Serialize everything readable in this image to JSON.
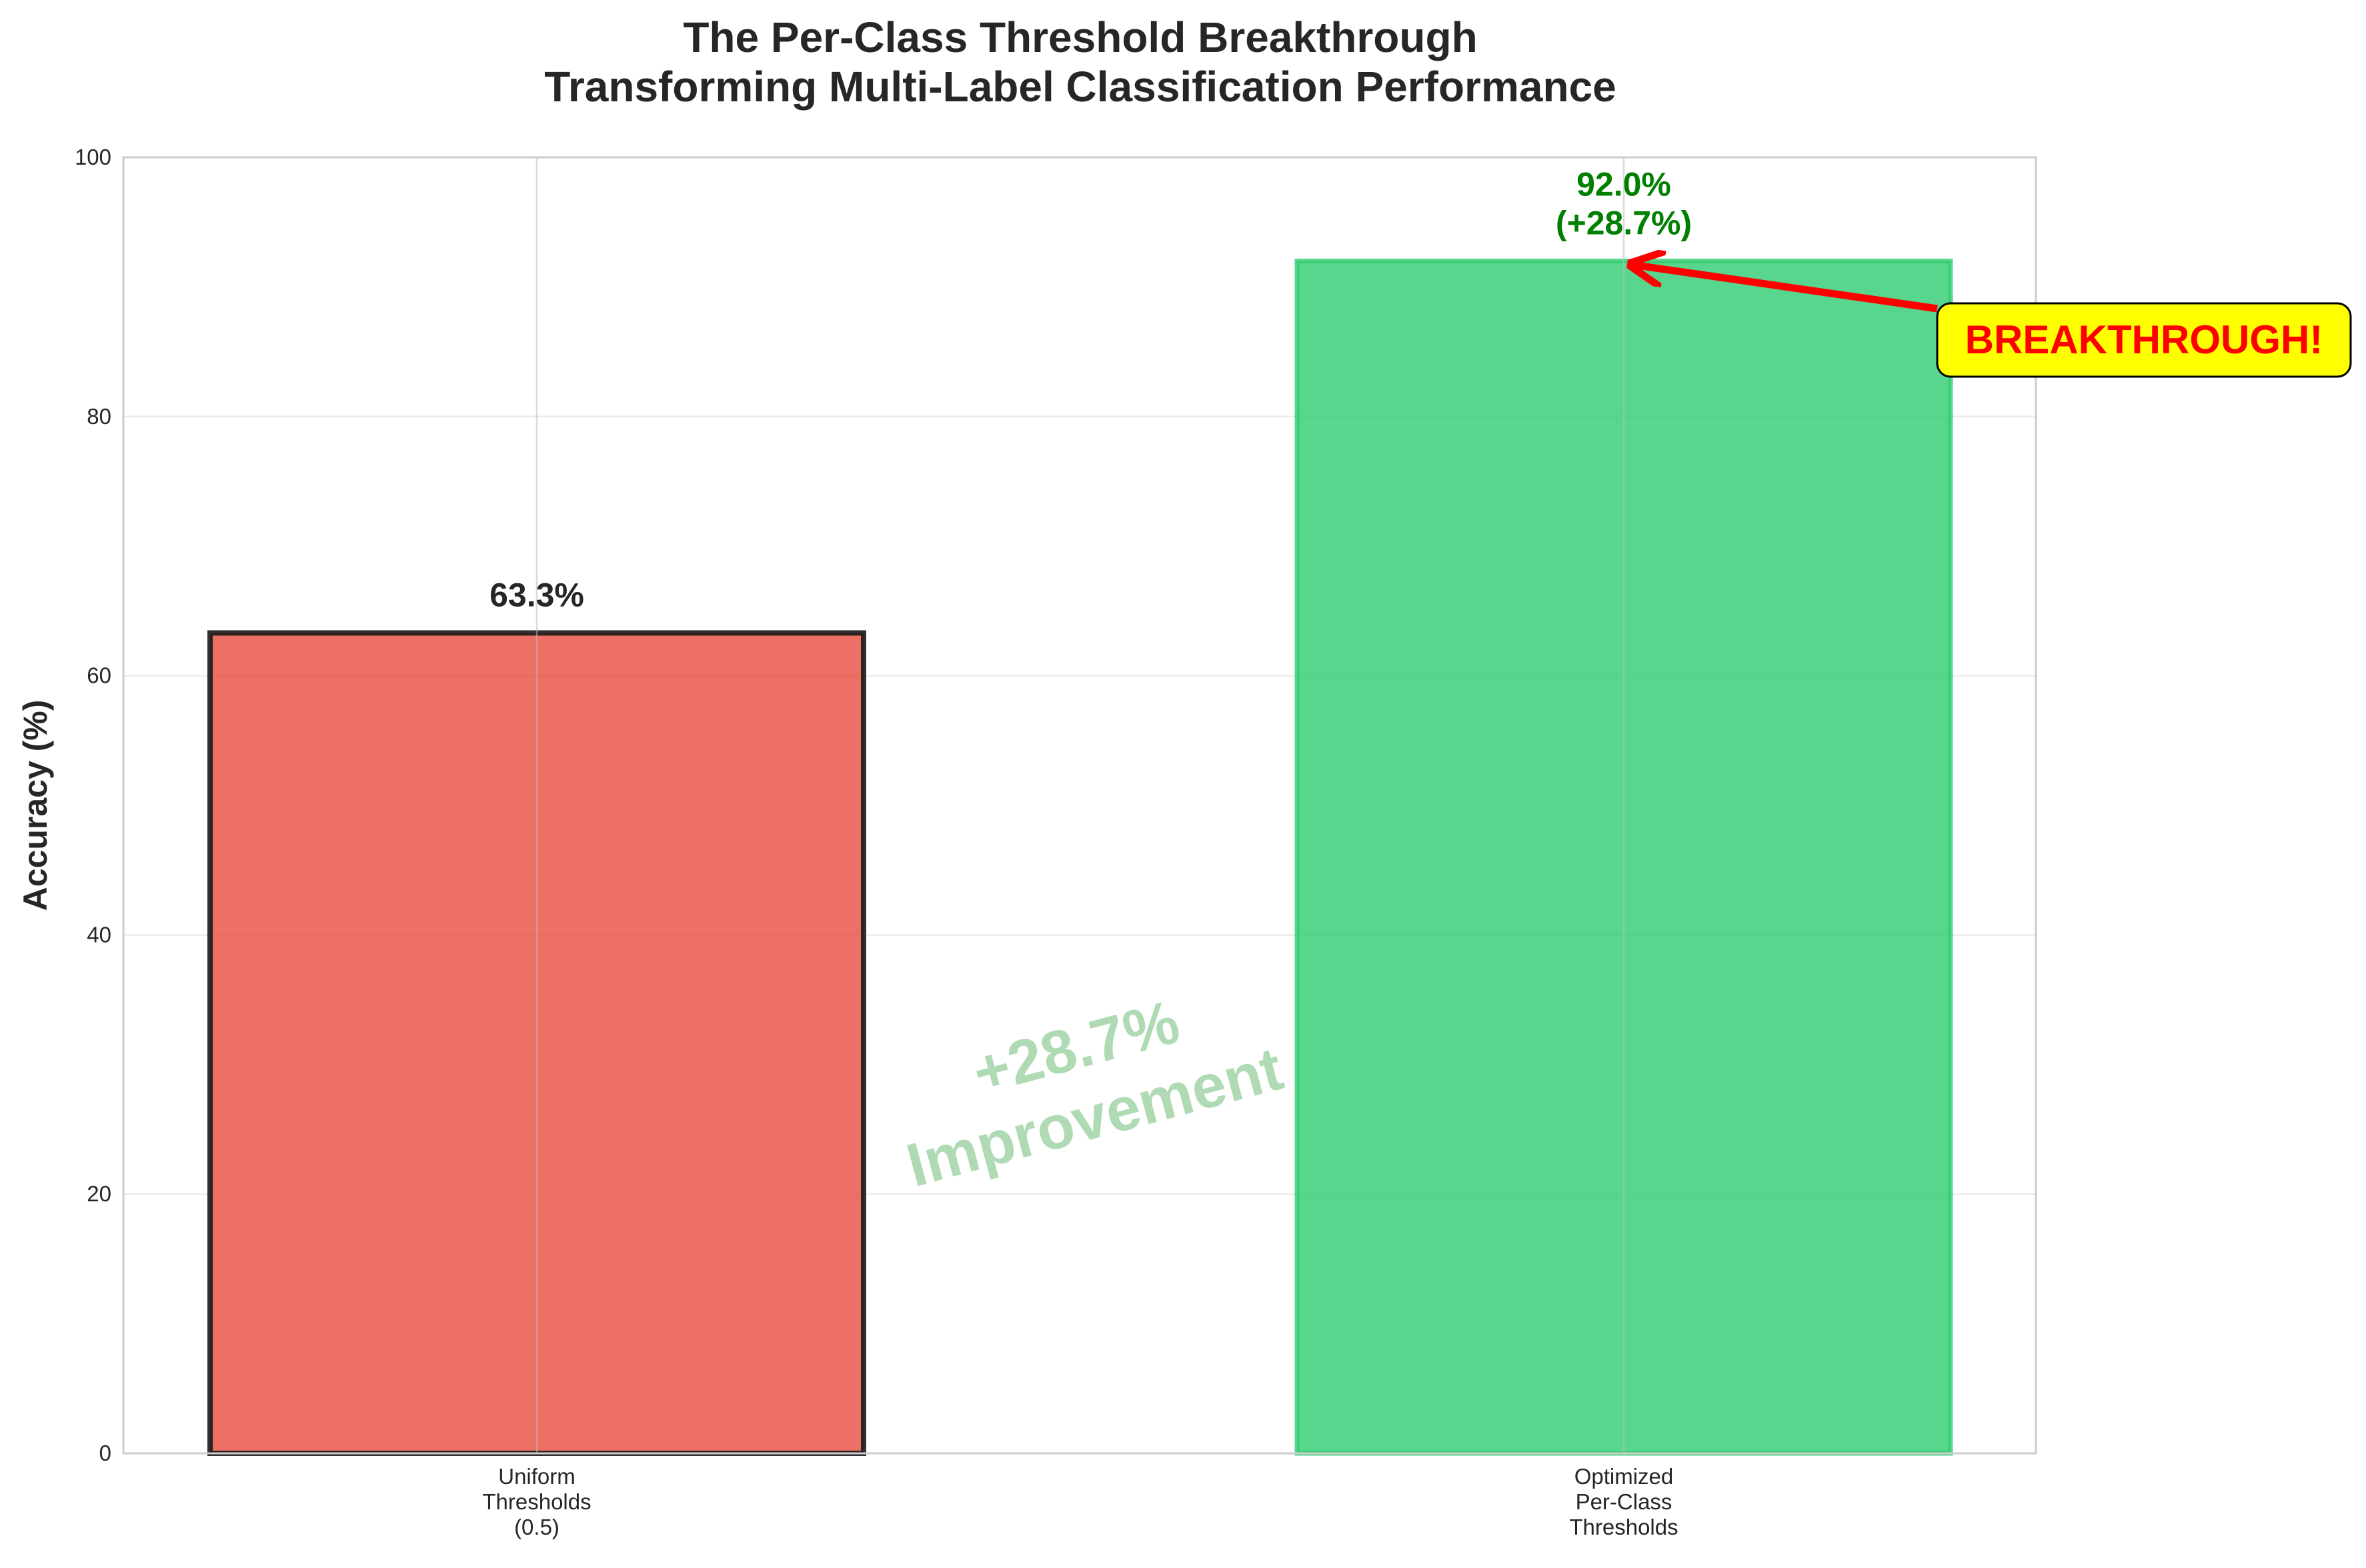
{
  "chart_data": {
    "type": "bar",
    "title": "The Per-Class Threshold Breakthrough",
    "subtitle": "Transforming Multi-Label Classification Performance",
    "xlabel": "",
    "ylabel": "Accuracy (%)",
    "ylim": [
      0,
      100
    ],
    "yticks": [
      0,
      20,
      40,
      60,
      80,
      100
    ],
    "categories": [
      [
        "Uniform",
        "Thresholds",
        "(0.5)"
      ],
      [
        "Optimized",
        "Per-Class",
        "Thresholds"
      ]
    ],
    "values": [
      63.3,
      92.0
    ],
    "bar_labels": [
      [
        "63.3%"
      ],
      [
        "92.0%",
        "(+28.7%)"
      ]
    ],
    "colors": [
      "#e74c3c",
      "#2ecc71"
    ],
    "edge_colors": [
      "#1a1a1a",
      "#2ecc71"
    ],
    "label_colors": [
      "#262626",
      "#008000"
    ],
    "grid": true,
    "annotations": {
      "watermark": [
        "+28.7%",
        "Improvement"
      ],
      "callout": "BREAKTHROUGH!",
      "callout_target": {
        "category": 1,
        "value": 92.0
      },
      "callout_box_color": "#ffff00",
      "callout_arrow_color": "#ff0000"
    }
  }
}
